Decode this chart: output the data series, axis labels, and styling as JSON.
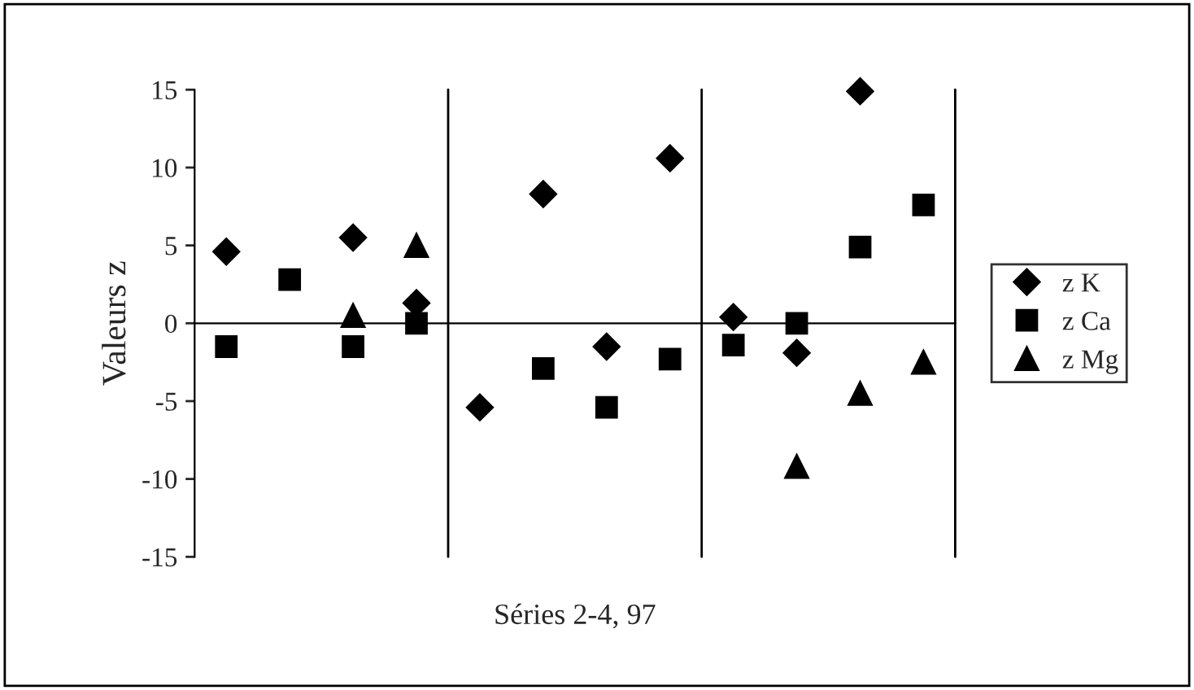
{
  "chart_data": {
    "type": "scatter",
    "xlabel": "Séries 2-4, 97",
    "ylabel": "Valeurs z",
    "categories": [
      null,
      null,
      null,
      null,
      null,
      null,
      null,
      null,
      null,
      null,
      null,
      null
    ],
    "series": [
      {
        "name": "z K",
        "color": "#000000",
        "marker": "diamond",
        "values": [
          4.6,
          null,
          5.5,
          1.3,
          -5.4,
          8.3,
          -1.5,
          10.6,
          0.4,
          -1.9,
          14.9,
          null
        ]
      },
      {
        "name": "z Ca",
        "color": "#000000",
        "marker": "square",
        "values": [
          -1.5,
          2.8,
          -1.5,
          0,
          null,
          -2.9,
          -5.4,
          -2.3,
          -1.4,
          0,
          4.9,
          7.6
        ]
      },
      {
        "name": "z Mg",
        "color": "#000000",
        "marker": "triangle",
        "values": [
          null,
          null,
          0.5,
          5,
          null,
          null,
          null,
          null,
          null,
          -9.2,
          -4.5,
          -2.5
        ]
      }
    ],
    "ylim": [
      -15,
      15
    ],
    "yticks": [
      -15,
      -10,
      -5,
      0,
      5,
      10,
      15
    ],
    "grid": false,
    "legend": "right",
    "tick_labels": "y"
  }
}
